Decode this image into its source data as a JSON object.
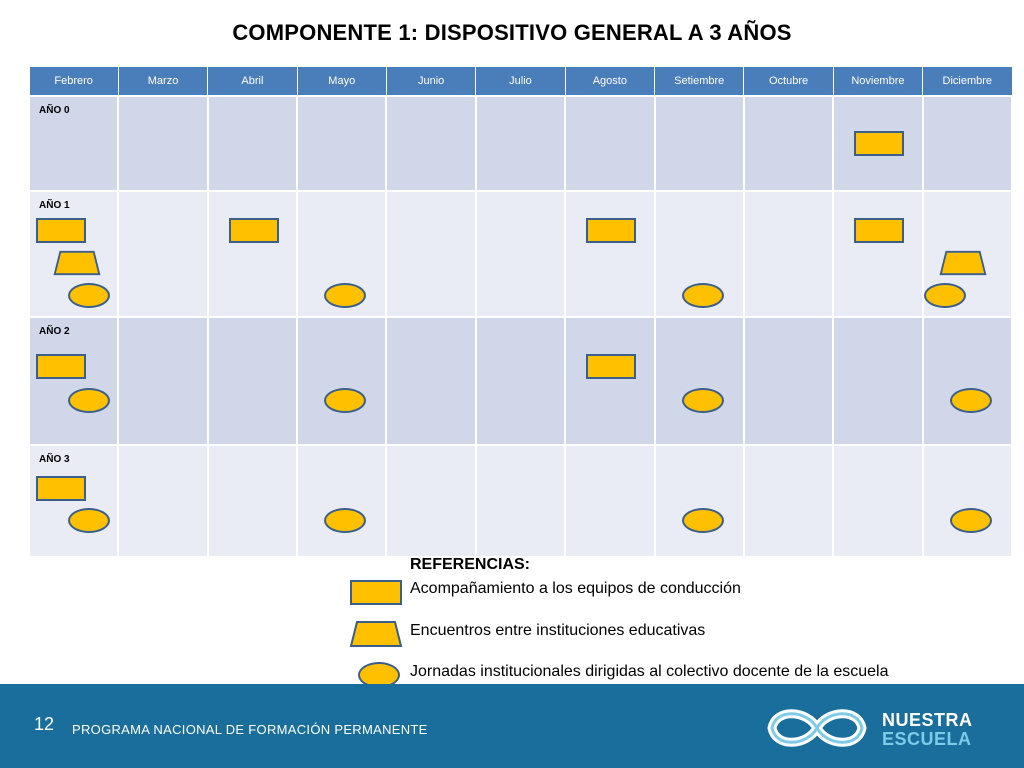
{
  "title": "COMPONENTE 1: DISPOSITIVO GENERAL A 3 AÑOS",
  "months": [
    "Febrero",
    "Marzo",
    "Abril",
    "Mayo",
    "Junio",
    "Julio",
    "Agosto",
    "Setiembre",
    "Octubre",
    "Noviembre",
    "Diciembre"
  ],
  "rows": [
    {
      "label": "AÑO 0"
    },
    {
      "label": "AÑO 1"
    },
    {
      "label": "AÑO 2"
    },
    {
      "label": "AÑO 3"
    }
  ],
  "schedule": [
    {
      "row": "AÑO 0",
      "month": "Noviembre",
      "shape": "rectangle"
    },
    {
      "row": "AÑO 1",
      "month": "Febrero",
      "shape": "rectangle"
    },
    {
      "row": "AÑO 1",
      "month": "Febrero",
      "shape": "trapezoid"
    },
    {
      "row": "AÑO 1",
      "month": "Febrero",
      "shape": "ellipse"
    },
    {
      "row": "AÑO 1",
      "month": "Abril",
      "shape": "rectangle"
    },
    {
      "row": "AÑO 1",
      "month": "Mayo",
      "shape": "ellipse"
    },
    {
      "row": "AÑO 1",
      "month": "Agosto",
      "shape": "rectangle"
    },
    {
      "row": "AÑO 1",
      "month": "Setiembre",
      "shape": "ellipse"
    },
    {
      "row": "AÑO 1",
      "month": "Noviembre",
      "shape": "rectangle"
    },
    {
      "row": "AÑO 1",
      "month": "Diciembre",
      "shape": "trapezoid"
    },
    {
      "row": "AÑO 1",
      "month": "Diciembre",
      "shape": "ellipse"
    },
    {
      "row": "AÑO 2",
      "month": "Febrero",
      "shape": "rectangle"
    },
    {
      "row": "AÑO 2",
      "month": "Febrero",
      "shape": "ellipse"
    },
    {
      "row": "AÑO 2",
      "month": "Mayo",
      "shape": "ellipse"
    },
    {
      "row": "AÑO 2",
      "month": "Agosto",
      "shape": "rectangle"
    },
    {
      "row": "AÑO 2",
      "month": "Setiembre",
      "shape": "ellipse"
    },
    {
      "row": "AÑO 2",
      "month": "Diciembre",
      "shape": "ellipse"
    },
    {
      "row": "AÑO 3",
      "month": "Febrero",
      "shape": "rectangle"
    },
    {
      "row": "AÑO 3",
      "month": "Febrero",
      "shape": "ellipse"
    },
    {
      "row": "AÑO 3",
      "month": "Mayo",
      "shape": "ellipse"
    },
    {
      "row": "AÑO 3",
      "month": "Setiembre",
      "shape": "ellipse"
    },
    {
      "row": "AÑO 3",
      "month": "Diciembre",
      "shape": "ellipse"
    }
  ],
  "legend": {
    "title": "REFERENCIAS:",
    "items": [
      {
        "shape": "rectangle",
        "label": "Acompañamiento a los equipos de conducción"
      },
      {
        "shape": "trapezoid",
        "label": "Encuentros entre instituciones educativas"
      },
      {
        "shape": "ellipse",
        "label": "Jornadas institucionales dirigidas al colectivo docente de la escuela"
      }
    ]
  },
  "footer": {
    "page_number": "12",
    "program": "PROGRAMA NACIONAL DE FORMACIÓN PERMANENTE",
    "logo_line1": "NUESTRA",
    "logo_line2": "ESCUELA"
  },
  "colors": {
    "header": "#4a7ebb",
    "row_dark": "#d0d7e9",
    "row_light": "#e9ecf5",
    "marker_fill": "#ffc000",
    "marker_stroke": "#3a5f8a",
    "footer": "#1a6e9c",
    "logo_accent": "#7ecbe8"
  }
}
